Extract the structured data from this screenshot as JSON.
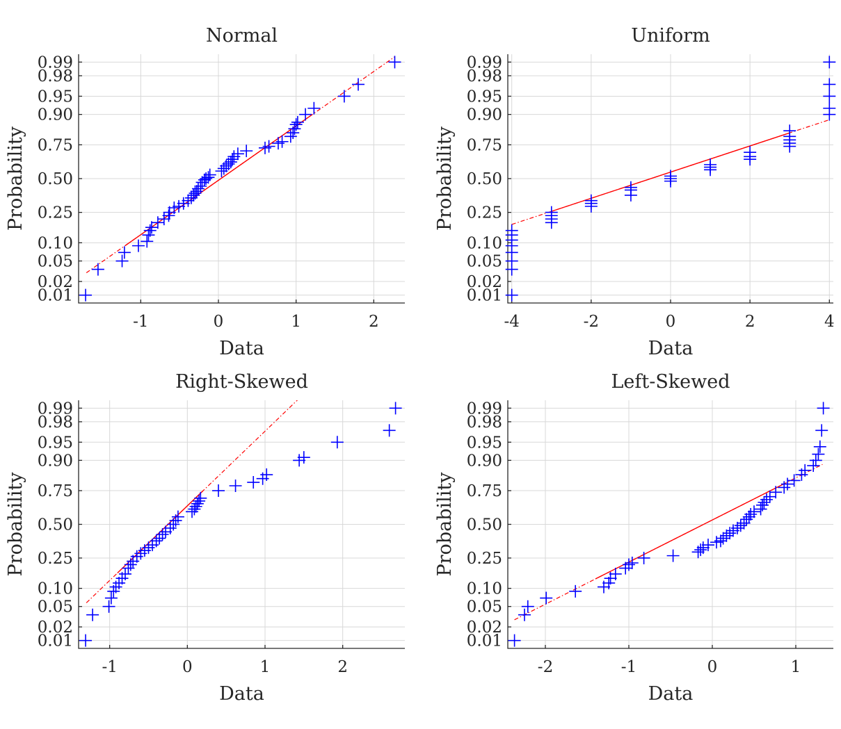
{
  "probability_ticks": [
    0.01,
    0.02,
    0.05,
    0.1,
    0.25,
    0.5,
    0.75,
    0.9,
    0.95,
    0.98,
    0.99
  ],
  "probability_tick_labels": [
    "0.01",
    "0.02",
    "0.05",
    "0.10",
    "0.25",
    "0.50",
    "0.75",
    "0.90",
    "0.95",
    "0.98",
    "0.99"
  ],
  "chart_data": [
    {
      "type": "scatter",
      "title": "Normal",
      "xlabel": "Data",
      "ylabel": "Probability",
      "xlim": [
        -1.8,
        2.4
      ],
      "xticks": [
        -1,
        0,
        1,
        2
      ],
      "xtick_labels": [
        "-1",
        "0",
        "1",
        "2"
      ],
      "ylim": [
        0.0065,
        0.9935
      ],
      "grid": true,
      "reference_line": {
        "x": [
          -1.7,
          2.27
        ],
        "y": [
          0.03,
          0.9925
        ],
        "solid_x": [
          -1.2,
          1.2
        ]
      },
      "series": [
        {
          "name": "data",
          "x": [
            -1.71,
            -1.55,
            -1.24,
            -1.21,
            -1.03,
            -0.92,
            -0.9,
            -0.88,
            -0.86,
            -0.78,
            -0.7,
            -0.64,
            -0.63,
            -0.57,
            -0.51,
            -0.45,
            -0.39,
            -0.35,
            -0.32,
            -0.3,
            -0.28,
            -0.26,
            -0.23,
            -0.21,
            -0.18,
            -0.16,
            -0.13,
            -0.11,
            0.04,
            0.07,
            0.1,
            0.13,
            0.16,
            0.18,
            0.2,
            0.25,
            0.36,
            0.6,
            0.65,
            0.77,
            0.82,
            0.93,
            0.96,
            0.98,
            1.0,
            1.02,
            1.12,
            1.23,
            1.62,
            1.8,
            2.27
          ],
          "y": [
            0.01,
            0.035,
            0.05,
            0.07,
            0.09,
            0.105,
            0.13,
            0.15,
            0.165,
            0.19,
            0.21,
            0.23,
            0.25,
            0.28,
            0.29,
            0.31,
            0.33,
            0.35,
            0.37,
            0.385,
            0.4,
            0.42,
            0.44,
            0.47,
            0.49,
            0.5,
            0.51,
            0.53,
            0.56,
            0.58,
            0.6,
            0.615,
            0.63,
            0.65,
            0.67,
            0.69,
            0.71,
            0.73,
            0.74,
            0.76,
            0.77,
            0.8,
            0.82,
            0.84,
            0.86,
            0.87,
            0.9,
            0.92,
            0.95,
            0.97,
            0.99
          ]
        }
      ]
    },
    {
      "type": "scatter",
      "title": "Uniform",
      "xlabel": "Data",
      "ylabel": "Probability",
      "xlim": [
        -4.1,
        4.1
      ],
      "xticks": [
        -4,
        -2,
        0,
        2,
        4
      ],
      "xtick_labels": [
        "-4",
        "-2",
        "0",
        "2",
        "4"
      ],
      "ylim": [
        0.0065,
        0.9935
      ],
      "grid": true,
      "reference_line": {
        "x": [
          -4,
          4
        ],
        "y": [
          0.18,
          0.88
        ],
        "solid_x": [
          -3,
          3
        ]
      },
      "series": [
        {
          "name": "data",
          "x": [
            -4,
            -4,
            -4,
            -4,
            -4,
            -4,
            -4,
            -4,
            -3,
            -3,
            -3,
            -3,
            -2,
            -2,
            -2,
            -1,
            -1,
            -1,
            0,
            0,
            0,
            1,
            1,
            1,
            2,
            2,
            2,
            3,
            3,
            3,
            3,
            3,
            4,
            4,
            4,
            4,
            4
          ],
          "y": [
            0.01,
            0.035,
            0.05,
            0.07,
            0.09,
            0.11,
            0.13,
            0.15,
            0.19,
            0.21,
            0.23,
            0.25,
            0.29,
            0.31,
            0.33,
            0.37,
            0.41,
            0.43,
            0.48,
            0.5,
            0.52,
            0.57,
            0.59,
            0.61,
            0.65,
            0.67,
            0.7,
            0.74,
            0.76,
            0.78,
            0.8,
            0.83,
            0.9,
            0.92,
            0.95,
            0.97,
            0.99
          ]
        }
      ]
    },
    {
      "type": "scatter",
      "title": "Right-Skewed",
      "xlabel": "Data",
      "ylabel": "Probability",
      "xlim": [
        -1.4,
        2.8
      ],
      "xticks": [
        -1,
        0,
        1,
        2
      ],
      "xtick_labels": [
        "-1",
        "0",
        "1",
        "2"
      ],
      "ylim": [
        0.0065,
        0.9935
      ],
      "grid": true,
      "reference_line": {
        "x": [
          -1.3,
          1.5
        ],
        "y": [
          0.058,
          0.9955
        ],
        "solid_x": [
          -0.9,
          0.2
        ]
      },
      "series": [
        {
          "name": "data",
          "x": [
            -1.31,
            -1.22,
            -1.01,
            -0.98,
            -0.95,
            -0.92,
            -0.88,
            -0.84,
            -0.8,
            -0.76,
            -0.73,
            -0.7,
            -0.65,
            -0.6,
            -0.55,
            -0.5,
            -0.45,
            -0.4,
            -0.36,
            -0.32,
            -0.28,
            -0.22,
            -0.18,
            -0.15,
            -0.12,
            0.06,
            0.09,
            0.11,
            0.13,
            0.15,
            0.17,
            0.4,
            0.62,
            0.85,
            0.97,
            1.02,
            1.44,
            1.5,
            1.93,
            2.6,
            2.68
          ],
          "y": [
            0.01,
            0.035,
            0.05,
            0.07,
            0.09,
            0.105,
            0.12,
            0.14,
            0.16,
            0.19,
            0.21,
            0.23,
            0.26,
            0.28,
            0.3,
            0.32,
            0.34,
            0.37,
            0.39,
            0.42,
            0.44,
            0.47,
            0.5,
            0.53,
            0.56,
            0.6,
            0.62,
            0.64,
            0.66,
            0.68,
            0.7,
            0.75,
            0.78,
            0.8,
            0.82,
            0.84,
            0.9,
            0.91,
            0.95,
            0.97,
            0.99
          ]
        }
      ]
    },
    {
      "type": "scatter",
      "title": "Left-Skewed",
      "xlabel": "Data",
      "ylabel": "Probability",
      "xlim": [
        -2.45,
        1.45
      ],
      "xticks": [
        -2,
        -1,
        0,
        1
      ],
      "xtick_labels": [
        "-2",
        "-1",
        "0",
        "1"
      ],
      "ylim": [
        0.0065,
        0.9935
      ],
      "grid": true,
      "reference_line": {
        "x": [
          -2.37,
          1.32
        ],
        "y": [
          0.028,
          0.885
        ],
        "solid_x": [
          -1.4,
          0.85
        ]
      },
      "series": [
        {
          "name": "data",
          "x": [
            -2.37,
            -2.25,
            -2.21,
            -1.99,
            -1.64,
            -1.3,
            -1.24,
            -1.22,
            -1.16,
            -1.04,
            -1.0,
            -0.96,
            -0.82,
            -0.47,
            -0.17,
            -0.14,
            -0.11,
            -0.05,
            0.05,
            0.1,
            0.13,
            0.17,
            0.21,
            0.25,
            0.3,
            0.34,
            0.38,
            0.41,
            0.44,
            0.46,
            0.5,
            0.58,
            0.6,
            0.62,
            0.65,
            0.69,
            0.76,
            0.86,
            0.9,
            0.98,
            1.07,
            1.11,
            1.21,
            1.24,
            1.27,
            1.29,
            1.31,
            1.33
          ],
          "y": [
            0.01,
            0.035,
            0.05,
            0.07,
            0.09,
            0.105,
            0.12,
            0.14,
            0.16,
            0.19,
            0.21,
            0.22,
            0.25,
            0.265,
            0.29,
            0.305,
            0.32,
            0.34,
            0.36,
            0.37,
            0.39,
            0.41,
            0.43,
            0.45,
            0.47,
            0.49,
            0.51,
            0.54,
            0.56,
            0.58,
            0.6,
            0.62,
            0.65,
            0.67,
            0.69,
            0.71,
            0.74,
            0.77,
            0.79,
            0.81,
            0.84,
            0.86,
            0.88,
            0.9,
            0.92,
            0.94,
            0.97,
            0.99
          ]
        }
      ]
    }
  ]
}
